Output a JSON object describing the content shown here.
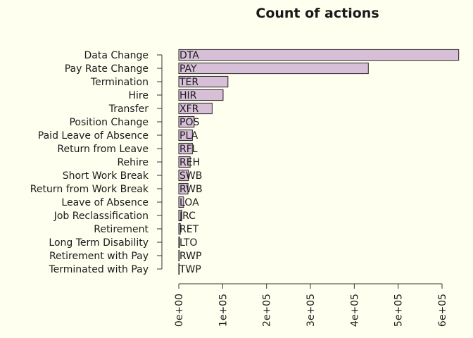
{
  "chart_data": {
    "type": "bar",
    "orientation": "horizontal",
    "title": "Count of actions",
    "xlabel": "",
    "ylabel": "",
    "xlim": [
      0,
      640000
    ],
    "x_ticks": [
      0,
      100000,
      200000,
      300000,
      400000,
      500000,
      600000
    ],
    "x_tick_labels": [
      "0e+00",
      "1e+05",
      "2e+05",
      "3e+05",
      "4e+05",
      "5e+05",
      "6e+05"
    ],
    "grid": false,
    "colors": {
      "bar_fill": "#D8BFD8",
      "bar_stroke": "#222222",
      "background": "#FFFFF0"
    },
    "categories": [
      "Data Change",
      "Pay Rate Change",
      "Termination",
      "Hire",
      "Transfer",
      "Position Change",
      "Paid Leave of Absence",
      "Return from Leave",
      "Rehire",
      "Short Work Break",
      "Return from Work Break",
      "Leave of Absence",
      "Job Reclassification",
      "Retirement",
      "Long Term Disability",
      "Retirement with Pay",
      "Terminated with Pay"
    ],
    "codes": [
      "DTA",
      "PAY",
      "TER",
      "HIR",
      "XFR",
      "POS",
      "PLA",
      "RFL",
      "REH",
      "SWB",
      "RWB",
      "LOA",
      "JRC",
      "RET",
      "LTO",
      "RWP",
      "TWP"
    ],
    "values": [
      638000,
      432000,
      112000,
      101000,
      76000,
      35000,
      31000,
      31000,
      26000,
      22000,
      21000,
      11000,
      7000,
      3500,
      1500,
      500,
      300
    ]
  }
}
